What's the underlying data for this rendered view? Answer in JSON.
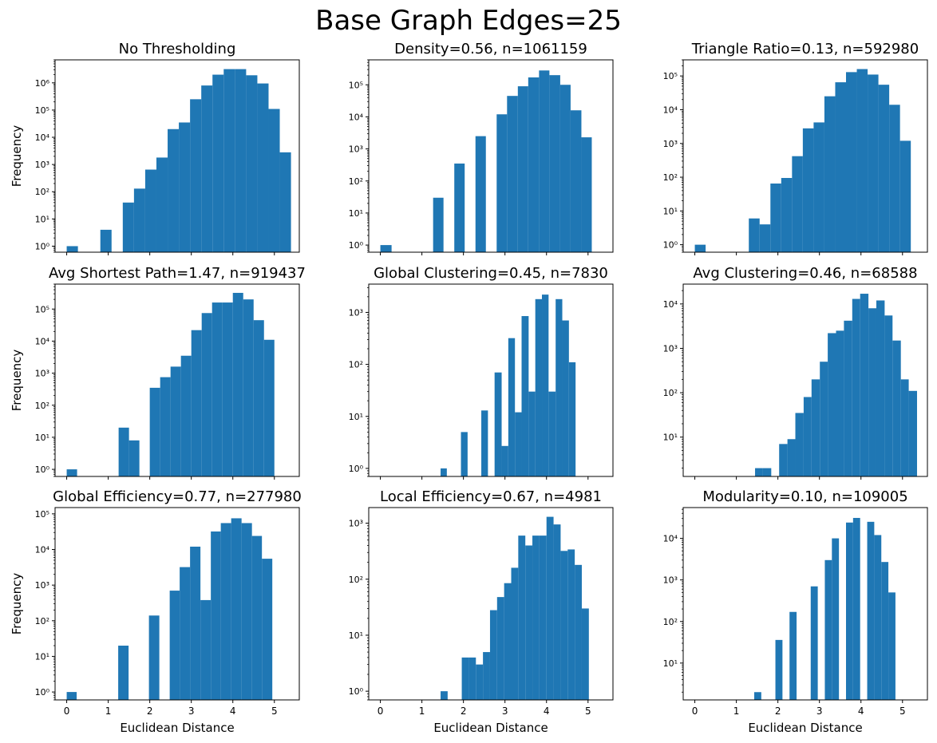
{
  "figure": {
    "title": "Base Graph Edges=25"
  },
  "colors": {
    "bar": "#1f77b4",
    "axis": "#000000",
    "background": "#ffffff"
  },
  "chart_data": [
    {
      "type": "bar",
      "scale": "log",
      "title": "No Thresholding",
      "ylabel": "Frequency",
      "xlabel": "",
      "xlim": [
        -0.28,
        5.6
      ],
      "ylim": [
        0.6,
        7000000
      ],
      "xticks": [
        0,
        1,
        2,
        3,
        4,
        5
      ],
      "show_xticklabels": false,
      "yticks": [
        1,
        10,
        100,
        1000,
        10000,
        100000,
        1000000
      ],
      "ytick_labels": [
        "10⁰",
        "10¹",
        "10²",
        "10³",
        "10⁴",
        "10⁵",
        "10⁶"
      ],
      "bins": [
        {
          "x0": 0.0,
          "x1": 0.27,
          "value": 1
        },
        {
          "x0": 0.81,
          "x1": 1.08,
          "value": 4
        },
        {
          "x0": 1.35,
          "x1": 1.62,
          "value": 40
        },
        {
          "x0": 1.62,
          "x1": 1.89,
          "value": 130
        },
        {
          "x0": 1.89,
          "x1": 2.16,
          "value": 650
        },
        {
          "x0": 2.16,
          "x1": 2.43,
          "value": 1800
        },
        {
          "x0": 2.43,
          "x1": 2.7,
          "value": 20000
        },
        {
          "x0": 2.7,
          "x1": 2.97,
          "value": 35000
        },
        {
          "x0": 2.97,
          "x1": 3.24,
          "value": 250000
        },
        {
          "x0": 3.24,
          "x1": 3.51,
          "value": 800000
        },
        {
          "x0": 3.51,
          "x1": 3.78,
          "value": 2000000
        },
        {
          "x0": 3.78,
          "x1": 4.05,
          "value": 3200000
        },
        {
          "x0": 4.05,
          "x1": 4.32,
          "value": 3200000
        },
        {
          "x0": 4.32,
          "x1": 4.59,
          "value": 1900000
        },
        {
          "x0": 4.59,
          "x1": 4.86,
          "value": 950000
        },
        {
          "x0": 4.86,
          "x1": 5.13,
          "value": 110000
        },
        {
          "x0": 5.13,
          "x1": 5.4,
          "value": 2800
        }
      ]
    },
    {
      "type": "bar",
      "scale": "log",
      "title": "Density=0.56, n=1061159",
      "ylabel": "",
      "xlabel": "",
      "xlim": [
        -0.28,
        5.6
      ],
      "ylim": [
        0.6,
        600000
      ],
      "xticks": [
        0,
        1,
        2,
        3,
        4,
        5
      ],
      "show_xticklabels": false,
      "yticks": [
        1,
        10,
        100,
        1000,
        10000,
        100000
      ],
      "ytick_labels": [
        "10⁰",
        "10¹",
        "10²",
        "10³",
        "10⁴",
        "10⁵"
      ],
      "bins": [
        {
          "x0": 0.0,
          "x1": 0.27,
          "value": 1
        },
        {
          "x0": 1.27,
          "x1": 1.52,
          "value": 30
        },
        {
          "x0": 1.78,
          "x1": 2.03,
          "value": 350
        },
        {
          "x0": 2.29,
          "x1": 2.54,
          "value": 2500
        },
        {
          "x0": 2.8,
          "x1": 3.05,
          "value": 12000
        },
        {
          "x0": 3.05,
          "x1": 3.31,
          "value": 45000
        },
        {
          "x0": 3.31,
          "x1": 3.56,
          "value": 90000
        },
        {
          "x0": 3.56,
          "x1": 3.82,
          "value": 170000
        },
        {
          "x0": 3.82,
          "x1": 4.07,
          "value": 280000
        },
        {
          "x0": 4.07,
          "x1": 4.33,
          "value": 200000
        },
        {
          "x0": 4.33,
          "x1": 4.58,
          "value": 100000
        },
        {
          "x0": 4.58,
          "x1": 4.84,
          "value": 16000
        },
        {
          "x0": 4.84,
          "x1": 5.09,
          "value": 2300
        }
      ]
    },
    {
      "type": "bar",
      "scale": "log",
      "title": "Triangle Ratio=0.13, n=592980",
      "ylabel": "",
      "xlabel": "",
      "xlim": [
        -0.28,
        5.6
      ],
      "ylim": [
        0.6,
        300000
      ],
      "xticks": [
        0,
        1,
        2,
        3,
        4,
        5
      ],
      "show_xticklabels": false,
      "yticks": [
        1,
        10,
        100,
        1000,
        10000,
        100000
      ],
      "ytick_labels": [
        "10⁰",
        "10¹",
        "10²",
        "10³",
        "10⁴",
        "10⁵"
      ],
      "bins": [
        {
          "x0": 0.0,
          "x1": 0.26,
          "value": 1
        },
        {
          "x0": 1.3,
          "x1": 1.56,
          "value": 6
        },
        {
          "x0": 1.56,
          "x1": 1.82,
          "value": 4
        },
        {
          "x0": 1.82,
          "x1": 2.08,
          "value": 65
        },
        {
          "x0": 2.08,
          "x1": 2.34,
          "value": 95
        },
        {
          "x0": 2.34,
          "x1": 2.6,
          "value": 420
        },
        {
          "x0": 2.6,
          "x1": 2.86,
          "value": 2800
        },
        {
          "x0": 2.86,
          "x1": 3.12,
          "value": 4200
        },
        {
          "x0": 3.12,
          "x1": 3.38,
          "value": 25000
        },
        {
          "x0": 3.38,
          "x1": 3.64,
          "value": 65000
        },
        {
          "x0": 3.64,
          "x1": 3.9,
          "value": 130000
        },
        {
          "x0": 3.9,
          "x1": 4.16,
          "value": 160000
        },
        {
          "x0": 4.16,
          "x1": 4.42,
          "value": 110000
        },
        {
          "x0": 4.42,
          "x1": 4.68,
          "value": 55000
        },
        {
          "x0": 4.68,
          "x1": 4.94,
          "value": 14000
        },
        {
          "x0": 4.94,
          "x1": 5.2,
          "value": 1200
        }
      ]
    },
    {
      "type": "bar",
      "scale": "log",
      "title": "Avg Shortest Path=1.47, n=919437",
      "ylabel": "Frequency",
      "xlabel": "",
      "xlim": [
        -0.28,
        5.6
      ],
      "ylim": [
        0.6,
        600000
      ],
      "xticks": [
        0,
        1,
        2,
        3,
        4,
        5
      ],
      "show_xticklabels": false,
      "yticks": [
        1,
        10,
        100,
        1000,
        10000,
        100000
      ],
      "ytick_labels": [
        "10⁰",
        "10¹",
        "10²",
        "10³",
        "10⁴",
        "10⁵"
      ],
      "bins": [
        {
          "x0": 0.0,
          "x1": 0.25,
          "value": 1
        },
        {
          "x0": 1.25,
          "x1": 1.5,
          "value": 20
        },
        {
          "x0": 1.5,
          "x1": 1.75,
          "value": 8
        },
        {
          "x0": 2.0,
          "x1": 2.25,
          "value": 350
        },
        {
          "x0": 2.25,
          "x1": 2.5,
          "value": 750
        },
        {
          "x0": 2.5,
          "x1": 2.75,
          "value": 1600
        },
        {
          "x0": 2.75,
          "x1": 3.0,
          "value": 3500
        },
        {
          "x0": 3.0,
          "x1": 3.25,
          "value": 22000
        },
        {
          "x0": 3.25,
          "x1": 3.5,
          "value": 75000
        },
        {
          "x0": 3.5,
          "x1": 3.75,
          "value": 160000
        },
        {
          "x0": 3.75,
          "x1": 4.0,
          "value": 160000
        },
        {
          "x0": 4.0,
          "x1": 4.25,
          "value": 320000
        },
        {
          "x0": 4.25,
          "x1": 4.5,
          "value": 200000
        },
        {
          "x0": 4.5,
          "x1": 4.75,
          "value": 45000
        },
        {
          "x0": 4.75,
          "x1": 5.0,
          "value": 11000
        }
      ]
    },
    {
      "type": "bar",
      "scale": "log",
      "title": "Global Clustering=0.45, n=7830",
      "ylabel": "",
      "xlabel": "",
      "xlim": [
        -0.28,
        5.6
      ],
      "ylim": [
        0.7,
        3500
      ],
      "xticks": [
        0,
        1,
        2,
        3,
        4,
        5
      ],
      "show_xticklabels": false,
      "yticks": [
        1,
        10,
        100,
        1000
      ],
      "ytick_labels": [
        "10⁰",
        "10¹",
        "10²",
        "10³"
      ],
      "bins": [
        {
          "x0": 1.45,
          "x1": 1.6,
          "value": 1
        },
        {
          "x0": 1.94,
          "x1": 2.1,
          "value": 5
        },
        {
          "x0": 2.43,
          "x1": 2.59,
          "value": 13
        },
        {
          "x0": 2.75,
          "x1": 2.92,
          "value": 70
        },
        {
          "x0": 2.92,
          "x1": 3.08,
          "value": 2.7
        },
        {
          "x0": 3.08,
          "x1": 3.24,
          "value": 320
        },
        {
          "x0": 3.24,
          "x1": 3.4,
          "value": 12
        },
        {
          "x0": 3.4,
          "x1": 3.57,
          "value": 850
        },
        {
          "x0": 3.57,
          "x1": 3.73,
          "value": 30
        },
        {
          "x0": 3.73,
          "x1": 3.89,
          "value": 1800
        },
        {
          "x0": 3.89,
          "x1": 4.05,
          "value": 2200
        },
        {
          "x0": 4.05,
          "x1": 4.22,
          "value": 30
        },
        {
          "x0": 4.22,
          "x1": 4.38,
          "value": 1800
        },
        {
          "x0": 4.38,
          "x1": 4.54,
          "value": 700
        },
        {
          "x0": 4.54,
          "x1": 4.7,
          "value": 110
        }
      ]
    },
    {
      "type": "bar",
      "scale": "log",
      "title": "Avg Clustering=0.46, n=68588",
      "ylabel": "",
      "xlabel": "",
      "xlim": [
        -0.28,
        5.6
      ],
      "ylim": [
        1.3,
        28000
      ],
      "xticks": [
        0,
        1,
        2,
        3,
        4,
        5
      ],
      "show_xticklabels": false,
      "yticks": [
        10,
        100,
        1000,
        10000
      ],
      "ytick_labels": [
        "10¹",
        "10²",
        "10³",
        "10⁴"
      ],
      "bins": [
        {
          "x0": 1.45,
          "x1": 1.64,
          "value": 2
        },
        {
          "x0": 1.64,
          "x1": 1.84,
          "value": 2
        },
        {
          "x0": 2.03,
          "x1": 2.23,
          "value": 7
        },
        {
          "x0": 2.23,
          "x1": 2.42,
          "value": 9
        },
        {
          "x0": 2.42,
          "x1": 2.62,
          "value": 35
        },
        {
          "x0": 2.62,
          "x1": 2.81,
          "value": 80
        },
        {
          "x0": 2.81,
          "x1": 3.01,
          "value": 200
        },
        {
          "x0": 3.01,
          "x1": 3.2,
          "value": 500
        },
        {
          "x0": 3.2,
          "x1": 3.4,
          "value": 2200
        },
        {
          "x0": 3.4,
          "x1": 3.59,
          "value": 2500
        },
        {
          "x0": 3.59,
          "x1": 3.79,
          "value": 4200
        },
        {
          "x0": 3.79,
          "x1": 3.98,
          "value": 13000
        },
        {
          "x0": 3.98,
          "x1": 4.18,
          "value": 17000
        },
        {
          "x0": 4.18,
          "x1": 4.37,
          "value": 8000
        },
        {
          "x0": 4.37,
          "x1": 4.57,
          "value": 12000
        },
        {
          "x0": 4.57,
          "x1": 4.76,
          "value": 5500
        },
        {
          "x0": 4.76,
          "x1": 4.96,
          "value": 1500
        },
        {
          "x0": 4.96,
          "x1": 5.15,
          "value": 200
        },
        {
          "x0": 5.15,
          "x1": 5.35,
          "value": 110
        }
      ]
    },
    {
      "type": "bar",
      "scale": "log",
      "title": "Global Efficiency=0.77, n=277980",
      "ylabel": "Frequency",
      "xlabel": "Euclidean Distance",
      "xlim": [
        -0.28,
        5.6
      ],
      "ylim": [
        0.6,
        150000
      ],
      "xticks": [
        0,
        1,
        2,
        3,
        4,
        5
      ],
      "show_xticklabels": true,
      "yticks": [
        1,
        10,
        100,
        1000,
        10000,
        100000
      ],
      "ytick_labels": [
        "10⁰",
        "10¹",
        "10²",
        "10³",
        "10⁴",
        "10⁵"
      ],
      "bins": [
        {
          "x0": 0.0,
          "x1": 0.24,
          "value": 1
        },
        {
          "x0": 1.24,
          "x1": 1.49,
          "value": 20
        },
        {
          "x0": 1.98,
          "x1": 2.23,
          "value": 140
        },
        {
          "x0": 2.48,
          "x1": 2.72,
          "value": 700
        },
        {
          "x0": 2.72,
          "x1": 2.97,
          "value": 3200
        },
        {
          "x0": 2.97,
          "x1": 3.22,
          "value": 12000
        },
        {
          "x0": 3.22,
          "x1": 3.47,
          "value": 380
        },
        {
          "x0": 3.47,
          "x1": 3.71,
          "value": 32000
        },
        {
          "x0": 3.71,
          "x1": 3.96,
          "value": 55000
        },
        {
          "x0": 3.96,
          "x1": 4.21,
          "value": 75000
        },
        {
          "x0": 4.21,
          "x1": 4.46,
          "value": 55000
        },
        {
          "x0": 4.46,
          "x1": 4.7,
          "value": 24000
        },
        {
          "x0": 4.7,
          "x1": 4.95,
          "value": 5500
        }
      ]
    },
    {
      "type": "bar",
      "scale": "log",
      "title": "Local Efficiency=0.67, n=4981",
      "ylabel": "",
      "xlabel": "Euclidean Distance",
      "xlim": [
        -0.28,
        5.6
      ],
      "ylim": [
        0.7,
        1900
      ],
      "xticks": [
        0,
        1,
        2,
        3,
        4,
        5
      ],
      "show_xticklabels": true,
      "yticks": [
        1,
        10,
        100,
        1000
      ],
      "ytick_labels": [
        "10⁰",
        "10¹",
        "10²",
        "10³"
      ],
      "bins": [
        {
          "x0": 1.45,
          "x1": 1.62,
          "value": 1
        },
        {
          "x0": 1.96,
          "x1": 2.13,
          "value": 4
        },
        {
          "x0": 2.13,
          "x1": 2.3,
          "value": 4
        },
        {
          "x0": 2.3,
          "x1": 2.47,
          "value": 3
        },
        {
          "x0": 2.47,
          "x1": 2.64,
          "value": 5
        },
        {
          "x0": 2.64,
          "x1": 2.81,
          "value": 28
        },
        {
          "x0": 2.81,
          "x1": 2.98,
          "value": 48
        },
        {
          "x0": 2.98,
          "x1": 3.15,
          "value": 85
        },
        {
          "x0": 3.15,
          "x1": 3.32,
          "value": 160
        },
        {
          "x0": 3.32,
          "x1": 3.49,
          "value": 600
        },
        {
          "x0": 3.49,
          "x1": 3.66,
          "value": 400
        },
        {
          "x0": 3.66,
          "x1": 3.83,
          "value": 600
        },
        {
          "x0": 3.83,
          "x1": 4.0,
          "value": 600
        },
        {
          "x0": 4.0,
          "x1": 4.17,
          "value": 1300
        },
        {
          "x0": 4.17,
          "x1": 4.34,
          "value": 950
        },
        {
          "x0": 4.34,
          "x1": 4.51,
          "value": 320
        },
        {
          "x0": 4.51,
          "x1": 4.68,
          "value": 340
        },
        {
          "x0": 4.68,
          "x1": 4.85,
          "value": 180
        },
        {
          "x0": 4.85,
          "x1": 5.02,
          "value": 30
        }
      ]
    },
    {
      "type": "bar",
      "scale": "log",
      "title": "Modularity=0.10, n=109005",
      "ylabel": "",
      "xlabel": "Euclidean Distance",
      "xlim": [
        -0.28,
        5.6
      ],
      "ylim": [
        1.3,
        55000
      ],
      "xticks": [
        0,
        1,
        2,
        3,
        4,
        5
      ],
      "show_xticklabels": true,
      "yticks": [
        10,
        100,
        1000,
        10000
      ],
      "ytick_labels": [
        "10¹",
        "10²",
        "10³",
        "10⁴"
      ],
      "bins": [
        {
          "x0": 1.43,
          "x1": 1.6,
          "value": 2
        },
        {
          "x0": 1.94,
          "x1": 2.11,
          "value": 36
        },
        {
          "x0": 2.28,
          "x1": 2.45,
          "value": 170
        },
        {
          "x0": 2.79,
          "x1": 2.96,
          "value": 700
        },
        {
          "x0": 3.13,
          "x1": 3.3,
          "value": 3000
        },
        {
          "x0": 3.3,
          "x1": 3.47,
          "value": 10000
        },
        {
          "x0": 3.64,
          "x1": 3.81,
          "value": 24000
        },
        {
          "x0": 3.81,
          "x1": 3.98,
          "value": 31000
        },
        {
          "x0": 4.15,
          "x1": 4.32,
          "value": 25000
        },
        {
          "x0": 4.32,
          "x1": 4.49,
          "value": 12000
        },
        {
          "x0": 4.49,
          "x1": 4.66,
          "value": 2700
        },
        {
          "x0": 4.66,
          "x1": 4.83,
          "value": 500
        }
      ]
    }
  ]
}
